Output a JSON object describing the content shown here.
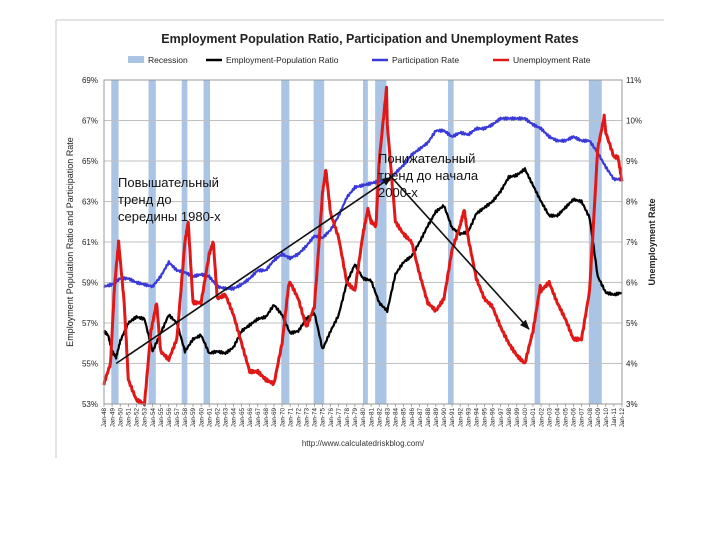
{
  "chart_data": {
    "type": "line",
    "title": "Employment Population Ratio, Participation and Unemployment Rates",
    "source": "http://www.calculatedriskblog.com/",
    "left_axis_label": "Employment Population Ratio and Participation Rate",
    "right_axis_label": "Unemployment Rate",
    "left_ticks": [
      "53%",
      "55%",
      "57%",
      "59%",
      "61%",
      "63%",
      "65%",
      "67%",
      "69%"
    ],
    "right_ticks": [
      "3%",
      "4%",
      "5%",
      "6%",
      "7%",
      "8%",
      "9%",
      "10%",
      "11%"
    ],
    "left_range": [
      53,
      69
    ],
    "right_range": [
      3,
      11
    ],
    "x_range": [
      1948,
      2012
    ],
    "x_ticks": [
      "Jan-48",
      "Jan-49",
      "Jan-50",
      "Jan-51",
      "Jan-52",
      "Jan-53",
      "Jan-54",
      "Jan-55",
      "Jan-56",
      "Jan-57",
      "Jan-58",
      "Jan-59",
      "Jan-60",
      "Jan-61",
      "Jan-62",
      "Jan-63",
      "Jan-64",
      "Jan-65",
      "Jan-66",
      "Jan-67",
      "Jan-68",
      "Jan-69",
      "Jan-70",
      "Jan-71",
      "Jan-72",
      "Jan-73",
      "Jan-74",
      "Jan-75",
      "Jan-76",
      "Jan-77",
      "Jan-78",
      "Jan-79",
      "Jan-80",
      "Jan-81",
      "Jan-82",
      "Jan-83",
      "Jan-84",
      "Jan-85",
      "Jan-86",
      "Jan-87",
      "Jan-88",
      "Jan-89",
      "Jan-90",
      "Jan-91",
      "Jan-92",
      "Jan-93",
      "Jan-94",
      "Jan-95",
      "Jan-96",
      "Jan-97",
      "Jan-98",
      "Jan-99",
      "Jan-00",
      "Jan-01",
      "Jan-02",
      "Jan-03",
      "Jan-04",
      "Jan-05",
      "Jan-06",
      "Jan-07",
      "Jan-08",
      "Jan-09",
      "Jan-10",
      "Jan-11",
      "Jan-12"
    ],
    "grid": true,
    "legend_placement": "top",
    "legend": [
      {
        "label": "Recession",
        "color": "#aac4e6",
        "kind": "bar"
      },
      {
        "label": "Employment-Population Ratio",
        "color": "#000000",
        "kind": "line"
      },
      {
        "label": "Participation Rate",
        "color": "#3a3ad8",
        "kind": "line"
      },
      {
        "label": "Unemployment Rate",
        "color": "#e01818",
        "kind": "line"
      }
    ],
    "recessions": [
      [
        1948.9,
        1949.8
      ],
      [
        1953.5,
        1954.4
      ],
      [
        1957.6,
        1958.3
      ],
      [
        1960.3,
        1961.1
      ],
      [
        1969.9,
        1970.9
      ],
      [
        1973.9,
        1975.2
      ],
      [
        1980.0,
        1980.6
      ],
      [
        1981.5,
        1982.9
      ],
      [
        1990.5,
        1991.2
      ],
      [
        2001.2,
        2001.9
      ],
      [
        2007.9,
        2009.5
      ]
    ],
    "series": [
      {
        "name": "Employment-Population Ratio",
        "axis": "left",
        "color": "#000000",
        "x": [
          1948,
          1948.5,
          1949,
          1949.5,
          1950,
          1951,
          1952,
          1953,
          1954,
          1955,
          1956,
          1957,
          1958,
          1959,
          1960,
          1961,
          1962,
          1963,
          1964,
          1965,
          1966,
          1967,
          1968,
          1969,
          1970,
          1971,
          1972,
          1973,
          1974,
          1975,
          1976,
          1977,
          1978,
          1979,
          1980,
          1981,
          1982,
          1983,
          1984,
          1985,
          1986,
          1987,
          1988,
          1989,
          1990,
          1991,
          1992,
          1993,
          1994,
          1995,
          1996,
          1997,
          1998,
          1999,
          2000,
          2001,
          2002,
          2003,
          2004,
          2005,
          2006,
          2007,
          2008,
          2009,
          2010,
          2011,
          2012
        ],
        "y": [
          56.6,
          56.4,
          55.6,
          55.3,
          56.1,
          57.0,
          57.3,
          57.2,
          55.6,
          56.5,
          57.4,
          57.0,
          55.6,
          56.2,
          56.4,
          55.5,
          55.6,
          55.5,
          55.8,
          56.6,
          56.9,
          57.2,
          57.3,
          57.9,
          57.4,
          56.5,
          56.6,
          57.2,
          57.5,
          55.7,
          56.6,
          57.4,
          59.0,
          59.9,
          59.2,
          59.1,
          58.0,
          57.6,
          59.4,
          60.0,
          60.3,
          61.0,
          61.8,
          62.5,
          62.8,
          61.7,
          61.4,
          61.5,
          62.4,
          62.7,
          63.0,
          63.5,
          64.2,
          64.3,
          64.6,
          63.8,
          63.0,
          62.3,
          62.3,
          62.7,
          63.1,
          63.0,
          62.2,
          59.3,
          58.5,
          58.4,
          58.5
        ]
      },
      {
        "name": "Participation Rate",
        "axis": "left",
        "color": "#3a3ad8",
        "x": [
          1948,
          1949,
          1950,
          1951,
          1952,
          1953,
          1954,
          1955,
          1956,
          1957,
          1958,
          1959,
          1960,
          1961,
          1962,
          1963,
          1964,
          1965,
          1966,
          1967,
          1968,
          1969,
          1970,
          1971,
          1972,
          1973,
          1974,
          1975,
          1976,
          1977,
          1978,
          1979,
          1980,
          1981,
          1982,
          1983,
          1984,
          1985,
          1986,
          1987,
          1988,
          1989,
          1990,
          1991,
          1992,
          1993,
          1994,
          1995,
          1996,
          1997,
          1998,
          1999,
          2000,
          2001,
          2002,
          2003,
          2004,
          2005,
          2006,
          2007,
          2008,
          2009,
          2010,
          2011,
          2012
        ],
        "y": [
          58.8,
          58.9,
          59.2,
          59.2,
          59.0,
          58.9,
          58.8,
          59.3,
          60.0,
          59.6,
          59.5,
          59.3,
          59.4,
          59.3,
          58.8,
          58.7,
          58.7,
          58.9,
          59.2,
          59.6,
          59.6,
          60.1,
          60.4,
          60.2,
          60.4,
          60.8,
          61.3,
          61.2,
          61.6,
          62.3,
          63.2,
          63.7,
          63.8,
          63.9,
          64.0,
          64.0,
          64.4,
          64.8,
          65.3,
          65.6,
          65.9,
          66.5,
          66.5,
          66.2,
          66.4,
          66.3,
          66.6,
          66.6,
          66.8,
          67.1,
          67.1,
          67.1,
          67.1,
          66.8,
          66.6,
          66.2,
          66.0,
          66.0,
          66.2,
          66.0,
          66.0,
          65.4,
          64.7,
          64.1,
          64.1
        ]
      },
      {
        "name": "Unemployment Rate",
        "axis": "right",
        "color": "#e01818",
        "x": [
          1948,
          1948.8,
          1949.3,
          1949.8,
          1950.5,
          1951,
          1952,
          1953,
          1953.8,
          1954.5,
          1955,
          1956,
          1957,
          1958,
          1958.4,
          1959,
          1960,
          1961,
          1961.5,
          1962,
          1963,
          1964,
          1965,
          1966,
          1967,
          1968,
          1969,
          1970,
          1970.8,
          1971,
          1972,
          1973,
          1974,
          1975,
          1975.4,
          1976,
          1977,
          1978,
          1979,
          1980,
          1980.6,
          1981,
          1981.6,
          1982,
          1982.9,
          1983,
          1984,
          1985,
          1986,
          1987,
          1988,
          1989,
          1990,
          1991,
          1992,
          1992.5,
          1993,
          1994,
          1995,
          1996,
          1997,
          1998,
          1999,
          2000,
          2001,
          2001.9,
          2002,
          2003,
          2004,
          2005,
          2006,
          2007,
          2008,
          2009,
          2009.8,
          2010,
          2011,
          2011.5,
          2012
        ],
        "y": [
          3.5,
          4.0,
          5.9,
          7.0,
          5.5,
          3.6,
          3.1,
          3.0,
          4.8,
          5.5,
          4.3,
          4.1,
          4.6,
          7.0,
          7.5,
          5.5,
          5.5,
          6.7,
          7.0,
          5.6,
          5.7,
          5.2,
          4.5,
          3.8,
          3.8,
          3.6,
          3.5,
          4.5,
          5.9,
          6.0,
          5.6,
          4.9,
          5.4,
          8.2,
          8.8,
          7.7,
          7.1,
          6.0,
          5.8,
          7.2,
          7.8,
          7.5,
          7.4,
          9.0,
          10.8,
          9.9,
          7.5,
          7.2,
          7.0,
          6.2,
          5.5,
          5.3,
          5.6,
          6.8,
          7.4,
          7.8,
          7.1,
          6.1,
          5.6,
          5.4,
          4.9,
          4.5,
          4.2,
          4.0,
          4.8,
          5.9,
          5.8,
          6.0,
          5.5,
          5.1,
          4.6,
          4.6,
          5.8,
          9.3,
          10.1,
          9.7,
          9.1,
          9.1,
          8.5
        ]
      }
    ],
    "annotations": [
      {
        "id": "rising",
        "lines": [
          "Повышательный",
          "тренд до",
          "середины 1980-х"
        ]
      },
      {
        "id": "falling",
        "lines": [
          "Понижательный",
          "тренд до начала",
          "2000-х"
        ]
      }
    ],
    "trend_arrows": [
      {
        "from": [
          1949.5,
          55.0
        ],
        "to": [
          1983.5,
          64.2
        ]
      },
      {
        "from": [
          1983.3,
          64.3
        ],
        "to": [
          2000.5,
          56.7
        ]
      }
    ]
  }
}
